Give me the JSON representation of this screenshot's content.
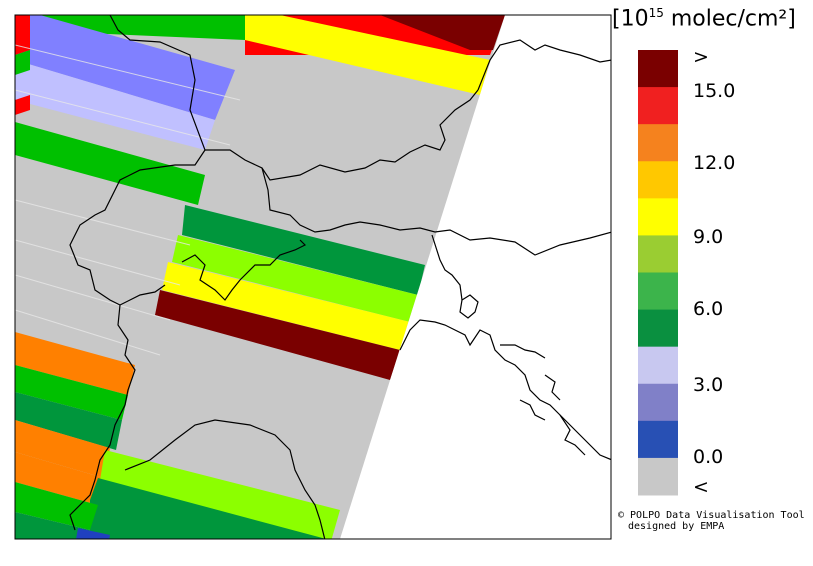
{
  "legend": {
    "unit": "[10¹⁵ molec/cm²]",
    "unit_prefix": "[10",
    "unit_exponent": "15",
    "unit_suffix": " molec/cm²]",
    "ticks": [
      ">",
      "15.0",
      "12.0",
      "9.0",
      "6.0",
      "3.0",
      "0.0",
      "<"
    ],
    "colors": [
      "#7a0000",
      "#f02020",
      "#f5821e",
      "#ffc800",
      "#ffff00",
      "#9acd32",
      "#3cb44b",
      "#0a9040",
      "#c8c8f0",
      "#8080c8",
      "#2850b4",
      "#c8c8c8"
    ]
  },
  "credit": {
    "line1": "© POLPO Data Visualisation Tool",
    "line2": "designed by EMPA"
  },
  "map": {
    "swath_colors": {
      "over": "#7a0000",
      "red": "#ff0000",
      "orange": "#ff8000",
      "yellow": "#ffff00",
      "lightgreen": "#8cff00",
      "green": "#00c000",
      "darkgreen": "#00963c",
      "lavender": "#c0c0ff",
      "blue": "#8080ff",
      "darkblue": "#2040c0",
      "under": "#c8c8c8"
    }
  }
}
